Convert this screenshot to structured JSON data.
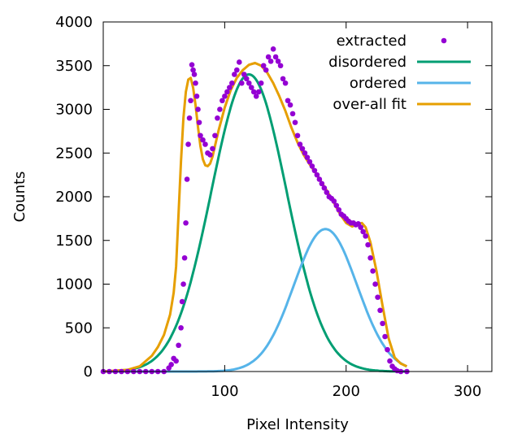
{
  "chart_data": {
    "type": "scatter",
    "title": "",
    "xlabel": "Pixel Intensity",
    "ylabel": "Counts",
    "xlim": [
      0,
      320
    ],
    "ylim": [
      0,
      4000
    ],
    "x_ticks": [
      100,
      200,
      300
    ],
    "y_ticks": [
      0,
      500,
      1000,
      1500,
      2000,
      2500,
      3000,
      3500,
      4000
    ],
    "grid": false,
    "legend": "top-right",
    "series": [
      {
        "name": "extracted",
        "kind": "points",
        "color": "#9400d3",
        "points": [
          [
            0,
            0
          ],
          [
            5,
            0
          ],
          [
            10,
            0
          ],
          [
            15,
            0
          ],
          [
            20,
            0
          ],
          [
            25,
            0
          ],
          [
            30,
            0
          ],
          [
            35,
            0
          ],
          [
            40,
            0
          ],
          [
            45,
            0
          ],
          [
            50,
            0
          ],
          [
            54,
            40
          ],
          [
            56,
            80
          ],
          [
            58,
            150
          ],
          [
            60,
            120
          ],
          [
            62,
            300
          ],
          [
            64,
            500
          ],
          [
            65,
            800
          ],
          [
            66,
            1000
          ],
          [
            67,
            1300
          ],
          [
            68,
            1700
          ],
          [
            69,
            2200
          ],
          [
            70,
            2600
          ],
          [
            71,
            2900
          ],
          [
            72,
            3100
          ],
          [
            73,
            3510
          ],
          [
            74,
            3450
          ],
          [
            75,
            3400
          ],
          [
            76,
            3300
          ],
          [
            77,
            3150
          ],
          [
            78,
            3000
          ],
          [
            79,
            2850
          ],
          [
            80,
            2700
          ],
          [
            82,
            2650
          ],
          [
            84,
            2600
          ],
          [
            86,
            2500
          ],
          [
            88,
            2480
          ],
          [
            90,
            2550
          ],
          [
            92,
            2700
          ],
          [
            94,
            2900
          ],
          [
            96,
            3000
          ],
          [
            98,
            3100
          ],
          [
            100,
            3150
          ],
          [
            102,
            3200
          ],
          [
            104,
            3250
          ],
          [
            106,
            3300
          ],
          [
            108,
            3400
          ],
          [
            110,
            3450
          ],
          [
            112,
            3540
          ],
          [
            114,
            3300
          ],
          [
            116,
            3400
          ],
          [
            118,
            3350
          ],
          [
            120,
            3300
          ],
          [
            122,
            3250
          ],
          [
            124,
            3200
          ],
          [
            126,
            3150
          ],
          [
            128,
            3200
          ],
          [
            130,
            3300
          ],
          [
            132,
            3500
          ],
          [
            134,
            3450
          ],
          [
            136,
            3600
          ],
          [
            138,
            3550
          ],
          [
            140,
            3690
          ],
          [
            142,
            3600
          ],
          [
            144,
            3550
          ],
          [
            146,
            3500
          ],
          [
            148,
            3350
          ],
          [
            150,
            3300
          ],
          [
            152,
            3100
          ],
          [
            154,
            3050
          ],
          [
            156,
            2950
          ],
          [
            158,
            2850
          ],
          [
            160,
            2700
          ],
          [
            162,
            2600
          ],
          [
            164,
            2550
          ],
          [
            166,
            2500
          ],
          [
            168,
            2450
          ],
          [
            170,
            2400
          ],
          [
            172,
            2350
          ],
          [
            174,
            2300
          ],
          [
            176,
            2250
          ],
          [
            178,
            2200
          ],
          [
            180,
            2150
          ],
          [
            182,
            2100
          ],
          [
            184,
            2050
          ],
          [
            186,
            2000
          ],
          [
            188,
            1980
          ],
          [
            190,
            1950
          ],
          [
            192,
            1900
          ],
          [
            194,
            1850
          ],
          [
            196,
            1800
          ],
          [
            198,
            1780
          ],
          [
            200,
            1750
          ],
          [
            202,
            1720
          ],
          [
            204,
            1700
          ],
          [
            206,
            1700
          ],
          [
            208,
            1680
          ],
          [
            210,
            1690
          ],
          [
            212,
            1650
          ],
          [
            214,
            1600
          ],
          [
            216,
            1550
          ],
          [
            218,
            1450
          ],
          [
            220,
            1300
          ],
          [
            222,
            1150
          ],
          [
            224,
            1000
          ],
          [
            226,
            850
          ],
          [
            228,
            700
          ],
          [
            230,
            550
          ],
          [
            232,
            400
          ],
          [
            234,
            250
          ],
          [
            236,
            120
          ],
          [
            238,
            60
          ],
          [
            240,
            30
          ],
          [
            242,
            10
          ],
          [
            245,
            0
          ],
          [
            250,
            0
          ]
        ]
      },
      {
        "name": "disordered",
        "kind": "curve",
        "color": "#009e73",
        "amplitude": 3400,
        "center": 120,
        "sigma": 31
      },
      {
        "name": "ordered",
        "kind": "curve",
        "color": "#56b4e9",
        "amplitude": 1630,
        "center": 183,
        "sigma": 26
      },
      {
        "name": "over-all fit",
        "kind": "curve",
        "color": "#e69f00",
        "points": [
          [
            0,
            0
          ],
          [
            10,
            10
          ],
          [
            20,
            20
          ],
          [
            30,
            60
          ],
          [
            40,
            180
          ],
          [
            45,
            280
          ],
          [
            50,
            420
          ],
          [
            55,
            650
          ],
          [
            58,
            900
          ],
          [
            60,
            1200
          ],
          [
            62,
            1800
          ],
          [
            64,
            2400
          ],
          [
            66,
            2900
          ],
          [
            68,
            3200
          ],
          [
            70,
            3340
          ],
          [
            72,
            3360
          ],
          [
            74,
            3250
          ],
          [
            76,
            3050
          ],
          [
            78,
            2800
          ],
          [
            80,
            2580
          ],
          [
            82,
            2430
          ],
          [
            84,
            2360
          ],
          [
            86,
            2350
          ],
          [
            88,
            2380
          ],
          [
            90,
            2460
          ],
          [
            95,
            2760
          ],
          [
            100,
            3020
          ],
          [
            105,
            3220
          ],
          [
            110,
            3360
          ],
          [
            115,
            3450
          ],
          [
            120,
            3510
          ],
          [
            125,
            3530
          ],
          [
            130,
            3500
          ],
          [
            135,
            3420
          ],
          [
            140,
            3300
          ],
          [
            145,
            3150
          ],
          [
            150,
            2980
          ],
          [
            155,
            2790
          ],
          [
            160,
            2620
          ],
          [
            165,
            2480
          ],
          [
            170,
            2370
          ],
          [
            175,
            2270
          ],
          [
            180,
            2160
          ],
          [
            185,
            2050
          ],
          [
            190,
            1930
          ],
          [
            195,
            1800
          ],
          [
            200,
            1700
          ],
          [
            205,
            1660
          ],
          [
            210,
            1690
          ],
          [
            213,
            1700
          ],
          [
            216,
            1650
          ],
          [
            220,
            1480
          ],
          [
            225,
            1150
          ],
          [
            230,
            750
          ],
          [
            235,
            380
          ],
          [
            240,
            160
          ],
          [
            245,
            90
          ],
          [
            250,
            60
          ]
        ]
      }
    ]
  }
}
